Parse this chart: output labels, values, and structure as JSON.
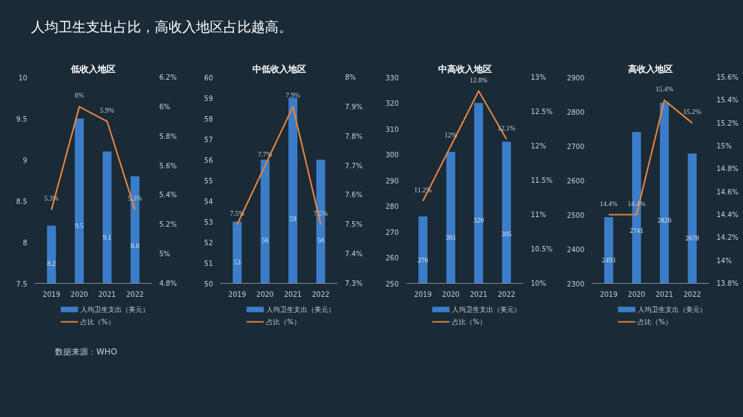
{
  "chart_data": [
    {
      "type": "bar",
      "title": "低收入地区",
      "categories": [
        "2019",
        "2020",
        "2021",
        "2022"
      ],
      "ylim": [
        7.5,
        10
      ],
      "yticks": [
        7.5,
        8,
        8.5,
        9,
        9.5,
        10
      ],
      "y2lim": [
        4.8,
        6.2
      ],
      "y2ticks": [
        {
          "value": 4.8,
          "label": "4.8%"
        },
        {
          "value": 5,
          "label": "5%"
        },
        {
          "value": 5.2,
          "label": "5.2%"
        },
        {
          "value": 5.4,
          "label": "5.4%"
        },
        {
          "value": 5.6,
          "label": "5.6%"
        },
        {
          "value": 5.8,
          "label": "5.8%"
        },
        {
          "value": 6,
          "label": "6%"
        },
        {
          "value": 6.2,
          "label": "6.2%"
        }
      ],
      "legend": "bottom",
      "grid": false,
      "annotations": [
        "人均卫生支出占比，高收入地区占比越高。"
      ],
      "series": [
        {
          "name": "人均卫生支出（美元）",
          "type": "bar",
          "color": "#3b7dc8",
          "values": [
            8.2,
            9.5,
            9.1,
            8.8
          ],
          "value_labels": [
            "8.2",
            "9.5",
            "9.1",
            "8.8"
          ]
        },
        {
          "name": "占比（%）",
          "type": "line",
          "axis": "y2",
          "color": "#e8853d",
          "values": [
            5.3,
            6,
            5.9,
            5.3
          ],
          "value_labels": [
            "5.3%",
            "6%",
            "5.9%",
            "5.3%"
          ]
        }
      ]
    },
    {
      "type": "bar",
      "title": "中低收入地区",
      "categories": [
        "2019",
        "2020",
        "2021",
        "2022"
      ],
      "ylim": [
        50,
        60
      ],
      "yticks": [
        50,
        51,
        52,
        53,
        54,
        55,
        56,
        57,
        58,
        59,
        60
      ],
      "y2lim": [
        7.3,
        8
      ],
      "y2ticks": [
        {
          "value": 7.3,
          "label": "7.3%"
        },
        {
          "value": 7.4,
          "label": "7.4%"
        },
        {
          "value": 7.5,
          "label": "7.5%"
        },
        {
          "value": 7.6,
          "label": "7.6%"
        },
        {
          "value": 7.7,
          "label": "7.7%"
        },
        {
          "value": 7.8,
          "label": "7.8%"
        },
        {
          "value": 7.9,
          "label": "7.9%"
        },
        {
          "value": 8,
          "label": "8%"
        }
      ],
      "legend": "bottom",
      "grid": false,
      "series": [
        {
          "name": "人均卫生支出（美元）",
          "type": "bar",
          "color": "#3b7dc8",
          "values": [
            53,
            56,
            59,
            56
          ],
          "value_labels": [
            "53",
            "56",
            "59",
            "56"
          ]
        },
        {
          "name": "占比（%）",
          "type": "line",
          "axis": "y2",
          "color": "#e8853d",
          "values": [
            7.5,
            7.7,
            7.9,
            7.5
          ],
          "value_labels": [
            "7.5%",
            "7.7%",
            "7.9%",
            "7.5%"
          ]
        }
      ]
    },
    {
      "type": "bar",
      "title": "中高收入地区",
      "categories": [
        "2019",
        "2020",
        "2021",
        "2022"
      ],
      "ylim": [
        250,
        330
      ],
      "yticks": [
        250,
        260,
        270,
        280,
        290,
        300,
        310,
        320,
        330
      ],
      "y2lim": [
        10,
        13
      ],
      "y2ticks": [
        {
          "value": 10,
          "label": "10%"
        },
        {
          "value": 10.5,
          "label": "10.5%"
        },
        {
          "value": 11,
          "label": "11%"
        },
        {
          "value": 11.5,
          "label": "11.5%"
        },
        {
          "value": 12,
          "label": "12%"
        },
        {
          "value": 12.5,
          "label": "12.5%"
        },
        {
          "value": 13,
          "label": "13%"
        }
      ],
      "legend": "bottom",
      "grid": false,
      "series": [
        {
          "name": "人均卫生支出（美元）",
          "type": "bar",
          "color": "#3b7dc8",
          "values": [
            276,
            301,
            320,
            305
          ],
          "value_labels": [
            "276",
            "301",
            "320",
            "305"
          ]
        },
        {
          "name": "占比（%）",
          "type": "line",
          "axis": "y2",
          "color": "#e8853d",
          "values": [
            11.2,
            12,
            12.8,
            12.1
          ],
          "value_labels": [
            "11.2%",
            "12%",
            "12.8%",
            "12.1%"
          ]
        }
      ]
    },
    {
      "type": "bar",
      "title": "高收入地区",
      "categories": [
        "2019",
        "2020",
        "2021",
        "2022"
      ],
      "ylim": [
        2300,
        2900
      ],
      "yticks": [
        2300,
        2400,
        2500,
        2600,
        2700,
        2800,
        2900
      ],
      "y2lim": [
        13.8,
        15.6
      ],
      "y2ticks": [
        {
          "value": 13.8,
          "label": "13.8%"
        },
        {
          "value": 14,
          "label": "14%"
        },
        {
          "value": 14.2,
          "label": "14.2%"
        },
        {
          "value": 14.4,
          "label": "14.4%"
        },
        {
          "value": 14.6,
          "label": "14.6%"
        },
        {
          "value": 14.8,
          "label": "14.8%"
        },
        {
          "value": 15,
          "label": "15%"
        },
        {
          "value": 15.2,
          "label": "15.2%"
        },
        {
          "value": 15.4,
          "label": "15.4%"
        },
        {
          "value": 15.6,
          "label": "15.6%"
        }
      ],
      "legend": "bottom",
      "grid": false,
      "annotations": [
        "数据来源：WHO"
      ],
      "series": [
        {
          "name": "人均卫生支出（美元）",
          "type": "bar",
          "color": "#3b7dc8",
          "values": [
            2493,
            2741,
            2826,
            2678
          ],
          "value_labels": [
            "2493",
            "2741",
            "2826",
            "2678"
          ]
        },
        {
          "name": "占比（%）",
          "type": "line",
          "axis": "y2",
          "color": "#e8853d",
          "values": [
            14.4,
            14.4,
            15.4,
            15.2
          ],
          "value_labels": [
            "14.4%",
            "14.4%",
            "15.4%",
            "15.2%"
          ]
        }
      ]
    }
  ]
}
